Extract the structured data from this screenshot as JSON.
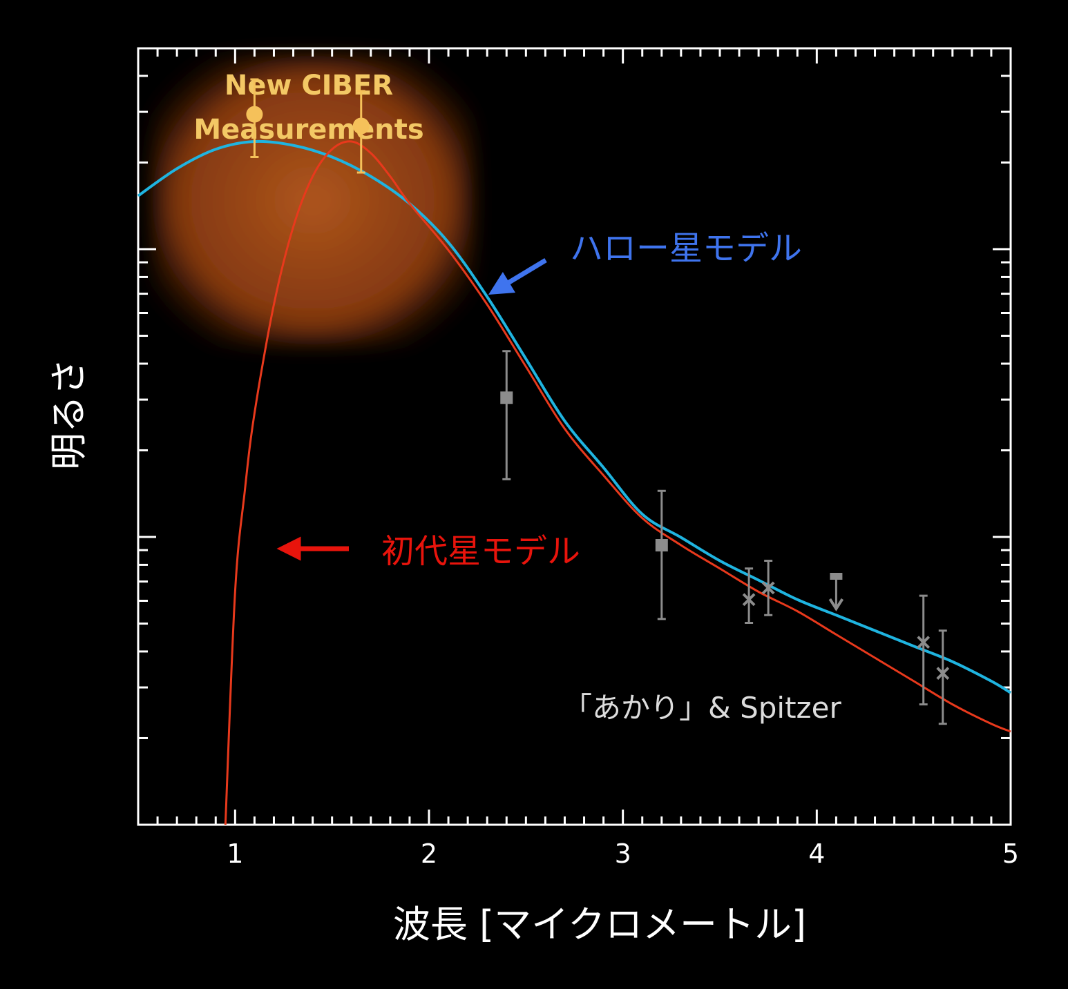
{
  "chart_data": {
    "type": "scatter",
    "xlabel": "波長 [マイクロメートル]",
    "ylabel": "明るさ",
    "x_ticks": [
      "1",
      "2",
      "3",
      "4",
      "5"
    ],
    "xlim": [
      0.5,
      5.0
    ],
    "ylim": [
      0,
      10
    ],
    "grid": false,
    "colors": {
      "background": "#000000",
      "axis": "#ffffff",
      "halo_model": "#1fb4e0",
      "first_star_model": "#e8391c",
      "ciber_points": "#f5c15a",
      "akari_points": "#8c8c8c",
      "halo_label": "#3f74ee",
      "first_star_label": "#e8140c"
    },
    "ciber_region_label": [
      "New CIBER",
      "Measurements"
    ],
    "other_data_label": "「あかり」& Spitzer",
    "series": [
      {
        "name": "ハロー星モデル",
        "kind": "line",
        "points": [
          [
            0.5,
            8.1
          ],
          [
            0.7,
            8.45
          ],
          [
            0.9,
            8.7
          ],
          [
            1.1,
            8.8
          ],
          [
            1.3,
            8.75
          ],
          [
            1.5,
            8.6
          ],
          [
            1.7,
            8.35
          ],
          [
            1.9,
            8.0
          ],
          [
            2.1,
            7.5
          ],
          [
            2.3,
            6.8
          ],
          [
            2.5,
            6.0
          ],
          [
            2.7,
            5.2
          ],
          [
            2.9,
            4.6
          ],
          [
            3.1,
            4.0
          ],
          [
            3.3,
            3.7
          ],
          [
            3.5,
            3.4
          ],
          [
            3.7,
            3.15
          ],
          [
            3.9,
            2.9
          ],
          [
            4.1,
            2.7
          ],
          [
            4.3,
            2.5
          ],
          [
            4.5,
            2.3
          ],
          [
            4.7,
            2.1
          ],
          [
            4.9,
            1.85
          ],
          [
            5.0,
            1.7
          ]
        ]
      },
      {
        "name": "初代星モデル",
        "kind": "line",
        "points": [
          [
            0.95,
            0.0
          ],
          [
            1.0,
            3.0
          ],
          [
            1.05,
            4.3
          ],
          [
            1.1,
            5.3
          ],
          [
            1.2,
            6.7
          ],
          [
            1.3,
            7.7
          ],
          [
            1.4,
            8.35
          ],
          [
            1.5,
            8.7
          ],
          [
            1.6,
            8.8
          ],
          [
            1.7,
            8.65
          ],
          [
            1.8,
            8.35
          ],
          [
            1.9,
            8.0
          ],
          [
            2.1,
            7.4
          ],
          [
            2.3,
            6.7
          ],
          [
            2.5,
            5.9
          ],
          [
            2.7,
            5.1
          ],
          [
            2.9,
            4.5
          ],
          [
            3.1,
            3.95
          ],
          [
            3.3,
            3.6
          ],
          [
            3.5,
            3.3
          ],
          [
            3.7,
            3.0
          ],
          [
            3.9,
            2.75
          ],
          [
            4.1,
            2.45
          ],
          [
            4.3,
            2.15
          ],
          [
            4.5,
            1.85
          ],
          [
            4.7,
            1.55
          ],
          [
            4.9,
            1.3
          ],
          [
            5.0,
            1.2
          ]
        ]
      },
      {
        "name": "New CIBER Measurements",
        "kind": "points",
        "marker": "circle",
        "points": [
          {
            "x": 1.1,
            "y": 9.15,
            "lo": 8.6,
            "hi": 9.6
          },
          {
            "x": 1.65,
            "y": 9.0,
            "lo": 8.4,
            "hi": 9.45
          }
        ]
      },
      {
        "name": "「あかり」& Spitzer",
        "kind": "points",
        "marker": "mixed",
        "points": [
          {
            "x": 2.4,
            "y": 5.5,
            "lo": 4.45,
            "hi": 6.1,
            "marker": "square"
          },
          {
            "x": 3.2,
            "y": 3.6,
            "lo": 2.65,
            "hi": 4.3,
            "marker": "square"
          },
          {
            "x": 3.65,
            "y": 2.9,
            "lo": 2.6,
            "hi": 3.3,
            "marker": "x"
          },
          {
            "x": 3.75,
            "y": 3.05,
            "lo": 2.7,
            "hi": 3.4,
            "marker": "x"
          },
          {
            "x": 4.1,
            "y": 2.8,
            "lo": 2.8,
            "hi": 3.2,
            "marker": "upper-limit"
          },
          {
            "x": 4.55,
            "y": 2.35,
            "lo": 1.55,
            "hi": 2.95,
            "marker": "x"
          },
          {
            "x": 4.65,
            "y": 1.95,
            "lo": 1.3,
            "hi": 2.5,
            "marker": "x"
          }
        ]
      }
    ],
    "annotations": [
      {
        "text": "ハロー星モデル",
        "color": "#3f74ee",
        "arrow": "down-left"
      },
      {
        "text": "初代星モデル",
        "color": "#e8140c",
        "arrow": "left"
      }
    ]
  }
}
